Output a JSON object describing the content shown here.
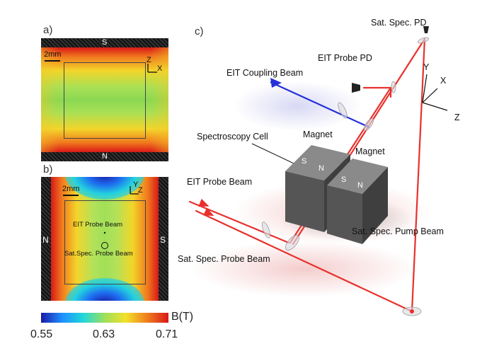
{
  "panel_a": {
    "letter": "a)",
    "pole_top": "S",
    "pole_bottom": "N",
    "scale_label": "2mm",
    "axis_z": "Z",
    "axis_x": "X"
  },
  "panel_b": {
    "letter": "b)",
    "pole_left": "N",
    "pole_right": "S",
    "scale_label": "2mm",
    "axis_y": "Y",
    "axis_z": "Z",
    "probe_label": "EIT Probe Beam",
    "satspec_label": "Sat.Spec. Probe Beam"
  },
  "colorbar": {
    "label": "B(T)",
    "ticks": [
      "0.55",
      "0.63",
      "0.71"
    ],
    "colors": [
      "#1a1aa8",
      "#1e90ff",
      "#22d8d8",
      "#9ee05a",
      "#f3e12a",
      "#f07d1e",
      "#d81818"
    ]
  },
  "panel_c": {
    "letter": "c)",
    "labels": {
      "sat_spec_pd": "Sat. Spec. PD",
      "eit_probe_pd": "EIT Probe PD",
      "eit_coupling_beam": "EIT Coupling Beam",
      "spectroscopy_cell": "Spectroscopy Cell",
      "magnet_1": "Magnet",
      "magnet_2": "Magnet",
      "eit_probe_beam": "EIT Probe Beam",
      "sat_spec_pump_beam": "Sat. Spec. Pump Beam",
      "sat_spec_probe_beam": "Sat. Spec.  Probe Beam"
    },
    "magnet_poles": [
      "S",
      "N",
      "S",
      "N"
    ],
    "axes": {
      "y": "Y",
      "x": "X",
      "z": "Z"
    },
    "beam_colors": {
      "red": "#e8312c",
      "blue": "#2430d8"
    }
  }
}
